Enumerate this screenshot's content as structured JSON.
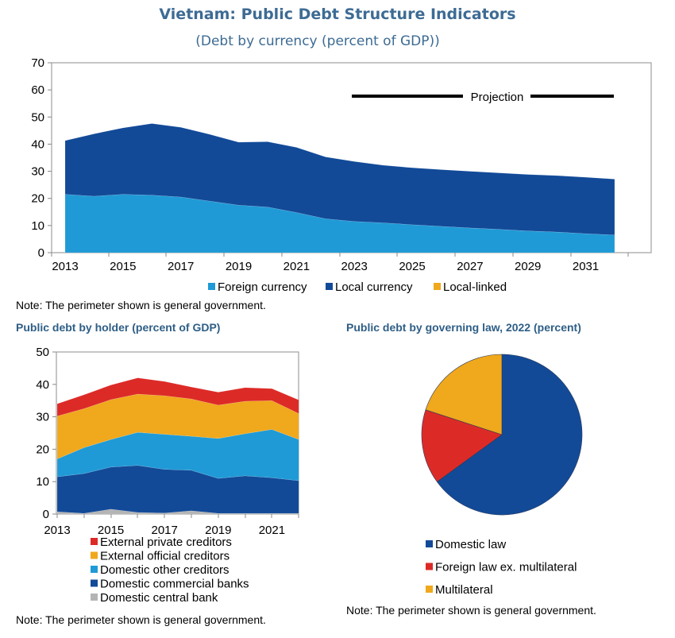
{
  "title": "Vietnam: Public Debt Structure Indicators",
  "subtitle": "(Debt by currency (percent of GDP))",
  "colors": {
    "title": "#3d6b94",
    "foreign": "#1f9ad6",
    "local": "#124a98",
    "linked": "#f0a81c",
    "red": "#dc2b27",
    "orange": "#f0a81c",
    "gray": "#b4b4b4"
  },
  "chart_data": [
    {
      "type": "area",
      "title": "Debt by currency (percent of GDP)",
      "annotation": "Projection",
      "ylim": [
        0,
        70
      ],
      "yticks": [
        0,
        10,
        20,
        30,
        40,
        50,
        60,
        70
      ],
      "x": [
        2013,
        2014,
        2015,
        2016,
        2017,
        2018,
        2019,
        2020,
        2021,
        2022,
        2023,
        2024,
        2025,
        2026,
        2027,
        2028,
        2029,
        2030,
        2031,
        2032
      ],
      "xtick_labels": [
        "2013",
        "2015",
        "2017",
        "2019",
        "2021",
        "2023",
        "2025",
        "2027",
        "2029",
        "2031"
      ],
      "series": [
        {
          "name": "Foreign currency",
          "color": "#1f9ad6",
          "values": [
            21.5,
            20.8,
            21.5,
            21.2,
            20.5,
            19.0,
            17.5,
            16.8,
            14.8,
            12.5,
            11.5,
            11.0,
            10.3,
            9.7,
            9.1,
            8.6,
            8.0,
            7.6,
            7.0,
            6.5
          ]
        },
        {
          "name": "Local currency",
          "color": "#124a98",
          "values": [
            19.8,
            23.0,
            24.5,
            26.4,
            25.7,
            24.6,
            23.2,
            24.1,
            24.0,
            22.8,
            22.1,
            21.2,
            21.0,
            20.9,
            20.9,
            20.8,
            20.8,
            20.8,
            20.8,
            20.6
          ]
        },
        {
          "name": "Local-linked",
          "color": "#f0a81c",
          "values": [
            0,
            0,
            0,
            0,
            0,
            0,
            0,
            0,
            0,
            0,
            0,
            0,
            0,
            0,
            0,
            0,
            0,
            0,
            0,
            0
          ]
        }
      ],
      "note": "Note: The perimeter shown is general government."
    },
    {
      "type": "area",
      "title": "Public debt by holder (percent of GDP)",
      "ylim": [
        0,
        50
      ],
      "yticks": [
        0,
        10,
        20,
        30,
        40,
        50
      ],
      "x": [
        2013,
        2014,
        2015,
        2016,
        2017,
        2018,
        2019,
        2020,
        2021,
        2022
      ],
      "xtick_labels": [
        "2013",
        "2015",
        "2017",
        "2019",
        "2021"
      ],
      "series": [
        {
          "name": "Domestic central bank",
          "color": "#b4b4b4",
          "values": [
            0.7,
            0.2,
            1.5,
            0.5,
            0.3,
            1.0,
            0.2,
            0.2,
            0.2,
            0.2
          ]
        },
        {
          "name": "Domestic commercial banks",
          "color": "#124a98",
          "values": [
            10.8,
            12.3,
            13.0,
            14.5,
            13.5,
            12.5,
            10.8,
            11.6,
            11.0,
            10.1
          ]
        },
        {
          "name": "Domestic other creditors",
          "color": "#1f9ad6",
          "values": [
            5.5,
            8.0,
            8.5,
            10.2,
            10.8,
            10.5,
            12.3,
            13.0,
            14.9,
            12.7
          ]
        },
        {
          "name": "External official creditors",
          "color": "#f0a81c",
          "values": [
            13.2,
            12.0,
            12.3,
            11.8,
            11.9,
            11.5,
            10.3,
            10.0,
            8.9,
            8.0
          ]
        },
        {
          "name": "External private creditors",
          "color": "#dc2b27",
          "values": [
            3.8,
            4.3,
            4.5,
            5.0,
            4.4,
            3.7,
            4.0,
            4.2,
            3.7,
            4.2
          ]
        }
      ],
      "legend_order": [
        "External private creditors",
        "External official creditors",
        "Domestic other creditors",
        "Domestic commercial banks",
        "Domestic central bank"
      ],
      "note": "Note: The perimeter shown is general government."
    },
    {
      "type": "pie",
      "title": "Public debt by governing law, 2022 (percent)",
      "slices": [
        {
          "name": "Domestic law",
          "color": "#124a98",
          "value": 65
        },
        {
          "name": "Foreign law ex. multilateral",
          "color": "#dc2b27",
          "value": 15
        },
        {
          "name": "Multilateral",
          "color": "#f0a81c",
          "value": 20
        }
      ],
      "note": "Note: The perimeter shown is general government."
    }
  ]
}
